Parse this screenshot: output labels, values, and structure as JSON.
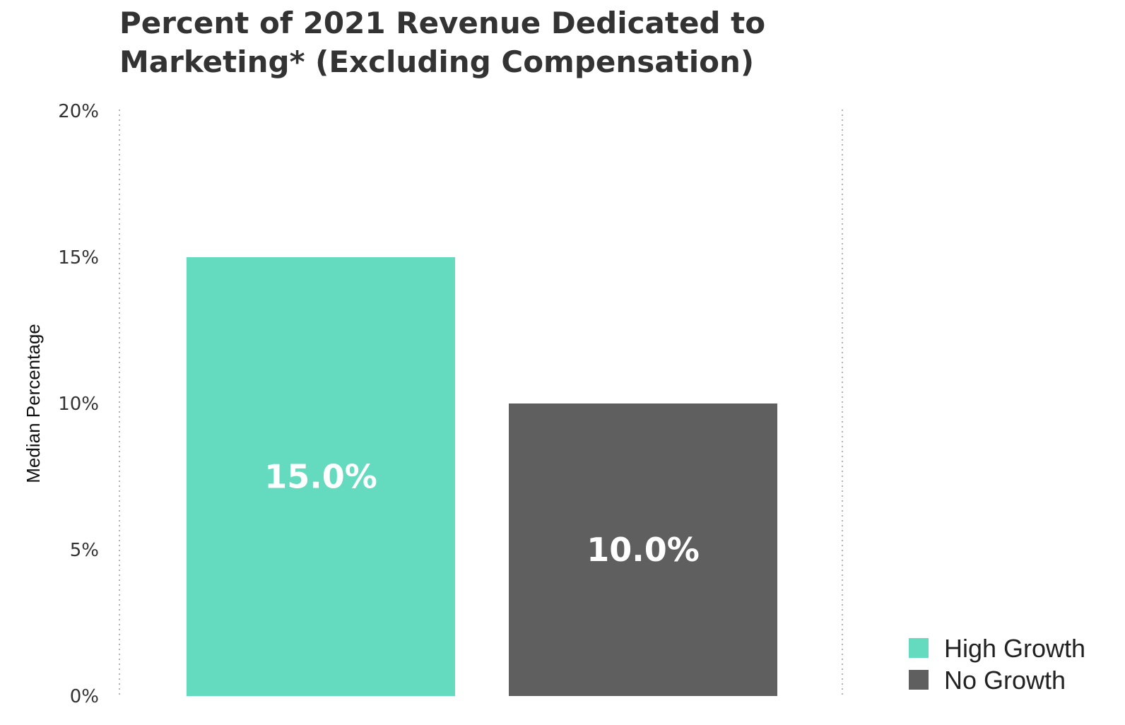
{
  "chart_data": {
    "type": "bar",
    "title_lines": [
      "Percent of 2021 Revenue Dedicated to",
      "Marketing* (Excluding Compensation)"
    ],
    "ylabel": "Median Percentage",
    "ylim": [
      0,
      20
    ],
    "yticks": [
      {
        "value": 0,
        "label": "0%"
      },
      {
        "value": 5,
        "label": "5%"
      },
      {
        "value": 10,
        "label": "10%"
      },
      {
        "value": 15,
        "label": "15%"
      },
      {
        "value": 20,
        "label": "20%"
      }
    ],
    "series": [
      {
        "name": "High Growth",
        "value": 15.0,
        "label": "15.0%",
        "color": "#64dabe"
      },
      {
        "name": "No Growth",
        "value": 10.0,
        "label": "10.0%",
        "color": "#5f5f5f"
      }
    ],
    "legend_position": "bottom-right",
    "grid": "vertical dotted lines at plot edges"
  }
}
